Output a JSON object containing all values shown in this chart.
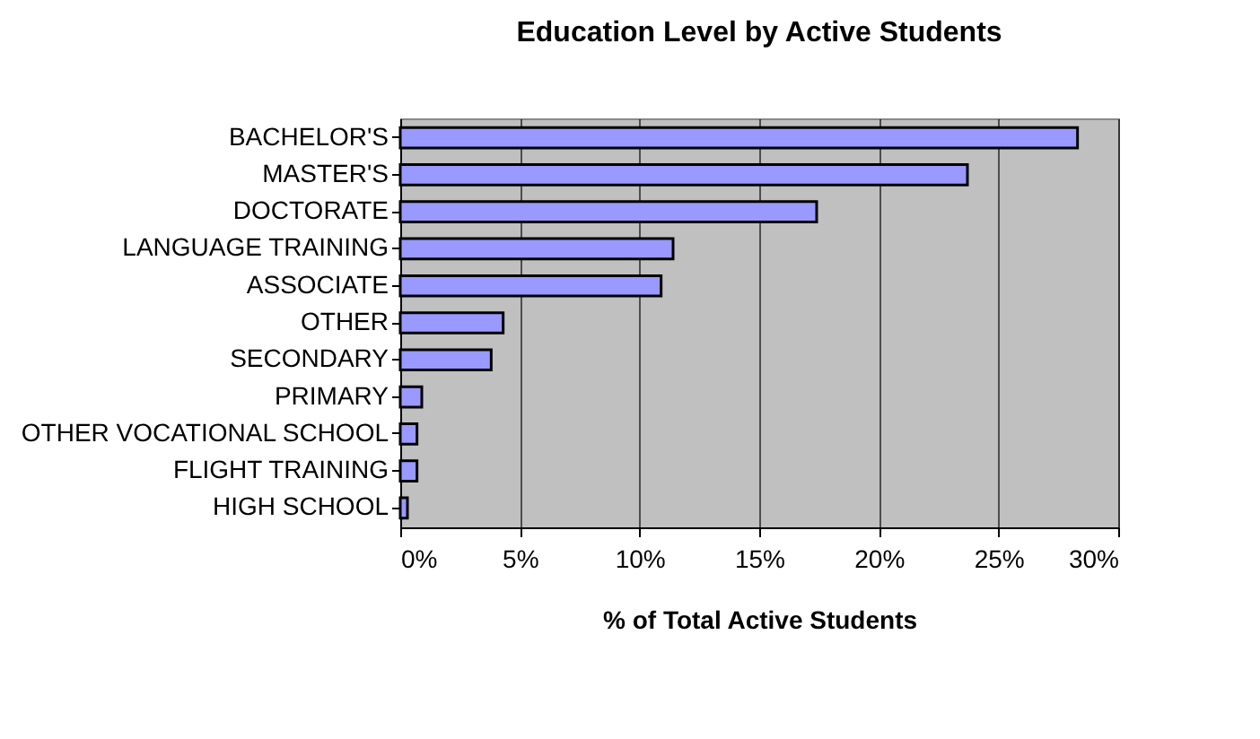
{
  "chart_data": {
    "type": "bar",
    "orientation": "horizontal",
    "title": "Education Level by Active Students",
    "xlabel": "% of Total Active Students",
    "categories": [
      "BACHELOR'S",
      "MASTER'S",
      "DOCTORATE",
      "LANGUAGE TRAINING",
      "ASSOCIATE",
      "OTHER",
      "SECONDARY",
      "PRIMARY",
      "OTHER VOCATIONAL SCHOOL",
      "FLIGHT TRAINING",
      "HIGH SCHOOL"
    ],
    "values": [
      28.3,
      23.7,
      17.4,
      11.4,
      10.9,
      4.3,
      3.8,
      0.9,
      0.7,
      0.7,
      0.3
    ],
    "color": "#9999ff",
    "xlim": [
      0,
      30
    ],
    "xticks": [
      {
        "value": 0,
        "label": "0%"
      },
      {
        "value": 5,
        "label": "5%"
      },
      {
        "value": 10,
        "label": "10%"
      },
      {
        "value": 15,
        "label": "15%"
      },
      {
        "value": 20,
        "label": "20%"
      },
      {
        "value": 25,
        "label": "25%"
      },
      {
        "value": 30,
        "label": "30%"
      }
    ],
    "grid": "x"
  }
}
